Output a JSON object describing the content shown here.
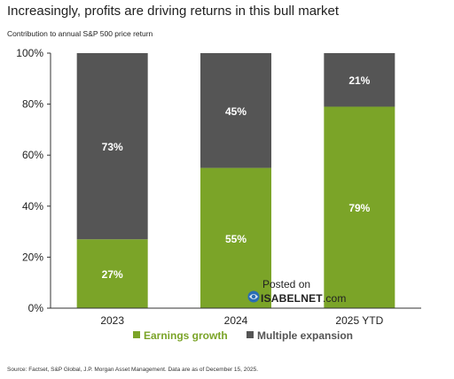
{
  "title": "Increasingly, profits are driving returns in this bull market",
  "subtitle": "Contribution to annual S&P 500 price return",
  "source": "Source: Factset, S&P Global, J.P. Morgan Asset Management. Data are as of December 15, 2025.",
  "watermark": {
    "posted": "Posted on",
    "site": "ISABELNET",
    "dotcom": ".com"
  },
  "colors": {
    "earnings": "#7ba428",
    "multiple": "#555555",
    "axis": "#333333"
  },
  "chart_data": {
    "type": "bar",
    "stacked": true,
    "categories": [
      "2023",
      "2024",
      "2025 YTD"
    ],
    "series": [
      {
        "name": "Earnings growth",
        "values": [
          27,
          55,
          79
        ],
        "labels": [
          "27%",
          "55%",
          "79%"
        ]
      },
      {
        "name": "Multiple expansion",
        "values": [
          73,
          45,
          21
        ],
        "labels": [
          "73%",
          "45%",
          "21%"
        ]
      }
    ],
    "ylim": [
      0,
      100
    ],
    "yticks": [
      "0%",
      "20%",
      "40%",
      "60%",
      "80%",
      "100%"
    ],
    "legend_position": "bottom",
    "grid": false
  }
}
